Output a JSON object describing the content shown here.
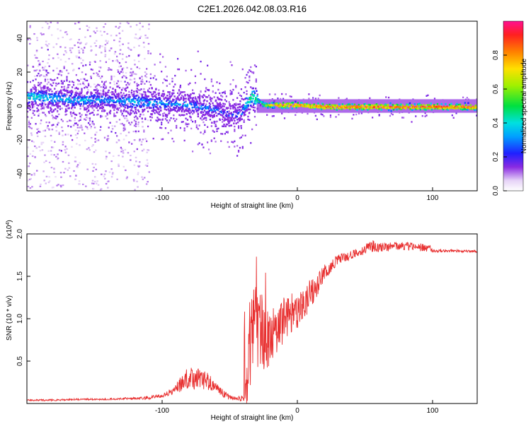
{
  "figure_title": "C2E1.2026.042.08.03.R16",
  "colors": {
    "snr_line": "#e83030",
    "axis": "#000000",
    "background": "#ffffff"
  },
  "chart_data": [
    {
      "type": "heatmap",
      "title": "C2E1.2026.042.08.03.R16",
      "xlabel": "Height of straight line (km)",
      "ylabel": "Frequency (Hz)",
      "xlim": [
        -200,
        133
      ],
      "ylim": [
        -50,
        50
      ],
      "xticks": [
        -100,
        0,
        100
      ],
      "xtick_labels": [
        "-100",
        "0",
        "100"
      ],
      "yticks": [
        40,
        20,
        0,
        -20,
        -40
      ],
      "ytick_labels": [
        "40",
        "20",
        "0",
        "-20",
        "-40"
      ],
      "ridge": {
        "description": "frequency centroid of the high-amplitude signal vs height",
        "x": [
          -200,
          -180,
          -160,
          -140,
          -120,
          -100,
          -80,
          -60,
          -50,
          -42,
          -38,
          -34,
          -30,
          -25,
          -20,
          -10,
          0,
          20,
          60,
          100,
          133
        ],
        "y": [
          6,
          5,
          4,
          4,
          3,
          2,
          1,
          -2,
          -5,
          -4,
          2,
          6,
          4,
          1,
          1,
          1,
          1,
          0,
          0,
          0,
          0
        ],
        "peak_amplitude": [
          0.5,
          0.45,
          0.45,
          0.4,
          0.45,
          0.4,
          0.4,
          0.35,
          0.3,
          0.35,
          0.5,
          0.55,
          0.6,
          0.7,
          0.8,
          0.95,
          0.9,
          0.95,
          0.95,
          0.97,
          0.95
        ]
      },
      "colorbar": {
        "label": "Normalized spectral amplitude",
        "range": [
          0.0,
          1.0
        ],
        "ticks": [
          0.0,
          0.2,
          0.4,
          0.6,
          0.8
        ],
        "tick_labels": [
          "0.0",
          "0.2",
          "0.4",
          "0.6",
          "0.8"
        ]
      }
    },
    {
      "type": "line",
      "xlabel": "Height of straight line (km)",
      "ylabel": "SNR (10 * v/v)",
      "multiplier_label": "(x10",
      "multiplier_exp": "4",
      "multiplier_close": ")",
      "xlim": [
        -200,
        133
      ],
      "ylim": [
        0,
        2.0
      ],
      "xticks": [
        -100,
        0,
        100
      ],
      "xtick_labels": [
        "-100",
        "0",
        "100"
      ],
      "yticks": [
        0.5,
        1.0,
        1.5,
        2.0
      ],
      "ytick_labels": [
        "0.5",
        "1.0",
        "1.5",
        "2.0"
      ],
      "series": [
        {
          "name": "SNR",
          "x": [
            -200,
            -180,
            -160,
            -140,
            -120,
            -110,
            -100,
            -95,
            -90,
            -85,
            -80,
            -75,
            -70,
            -65,
            -60,
            -55,
            -50,
            -45,
            -40,
            -37,
            -35,
            -33,
            -30,
            -28,
            -25,
            -22,
            -20,
            -15,
            -10,
            -5,
            0,
            5,
            10,
            15,
            20,
            25,
            30,
            40,
            50,
            55,
            60,
            70,
            80,
            90,
            96,
            100,
            110,
            120,
            133
          ],
          "y": [
            0.04,
            0.04,
            0.05,
            0.05,
            0.06,
            0.07,
            0.09,
            0.12,
            0.17,
            0.25,
            0.32,
            0.3,
            0.27,
            0.25,
            0.18,
            0.12,
            0.07,
            0.05,
            0.08,
            0.3,
            0.6,
            0.85,
            0.9,
            0.9,
            0.8,
            0.75,
            0.8,
            0.9,
            1.0,
            1.05,
            1.1,
            1.2,
            1.3,
            1.4,
            1.55,
            1.62,
            1.7,
            1.75,
            1.82,
            1.86,
            1.84,
            1.85,
            1.86,
            1.84,
            1.85,
            1.8,
            1.8,
            1.8,
            1.79
          ],
          "noise": [
            0.01,
            0.01,
            0.01,
            0.01,
            0.015,
            0.02,
            0.025,
            0.04,
            0.06,
            0.1,
            0.15,
            0.14,
            0.12,
            0.1,
            0.07,
            0.05,
            0.03,
            0.02,
            0.05,
            0.3,
            0.45,
            0.6,
            0.5,
            0.45,
            0.4,
            0.35,
            0.3,
            0.3,
            0.28,
            0.25,
            0.22,
            0.2,
            0.18,
            0.15,
            0.1,
            0.08,
            0.06,
            0.05,
            0.06,
            0.07,
            0.06,
            0.05,
            0.05,
            0.05,
            0.06,
            0.02,
            0.015,
            0.015,
            0.015
          ]
        }
      ]
    }
  ]
}
